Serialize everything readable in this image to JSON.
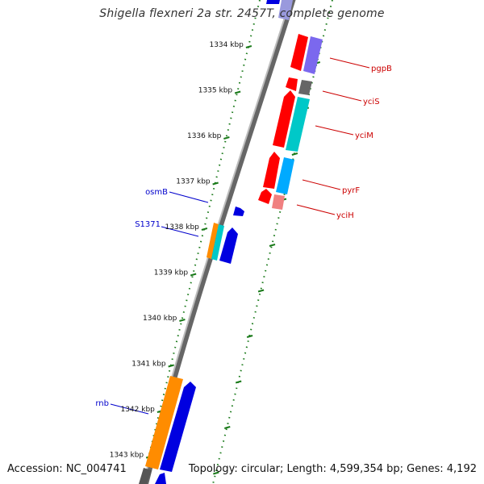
{
  "title": "Shigella flexneri 2a str. 2457T, complete genome",
  "footer": {
    "accession": "Accession: NC_004741",
    "topology": "Topology: circular; Length: 4,599,354 bp; Genes: 4,192"
  },
  "colors": {
    "backbone": "#8a8a8a",
    "tick": "#1a7a1a",
    "reverse_strand_label": "#0000cc",
    "forward_strand_label": "#cc0000"
  },
  "ticks": [
    "1334 kbp",
    "1335 kbp",
    "1336 kbp",
    "1337 kbp",
    "1338 kbp",
    "1339 kbp",
    "1340 kbp",
    "1341 kbp",
    "1342 kbp",
    "1343 kbp"
  ],
  "genes": {
    "reverse": [
      {
        "label": "osmB",
        "color": "blue"
      },
      {
        "label": "S1371",
        "color": "blue"
      },
      {
        "label": "rnb",
        "color": "blue"
      }
    ],
    "forward": [
      {
        "label": "pgpB",
        "color": "red"
      },
      {
        "label": "yciS",
        "color": "red"
      },
      {
        "label": "yciM",
        "color": "red"
      },
      {
        "label": "pyrF",
        "color": "red"
      },
      {
        "label": "yciH",
        "color": "red"
      }
    ]
  }
}
